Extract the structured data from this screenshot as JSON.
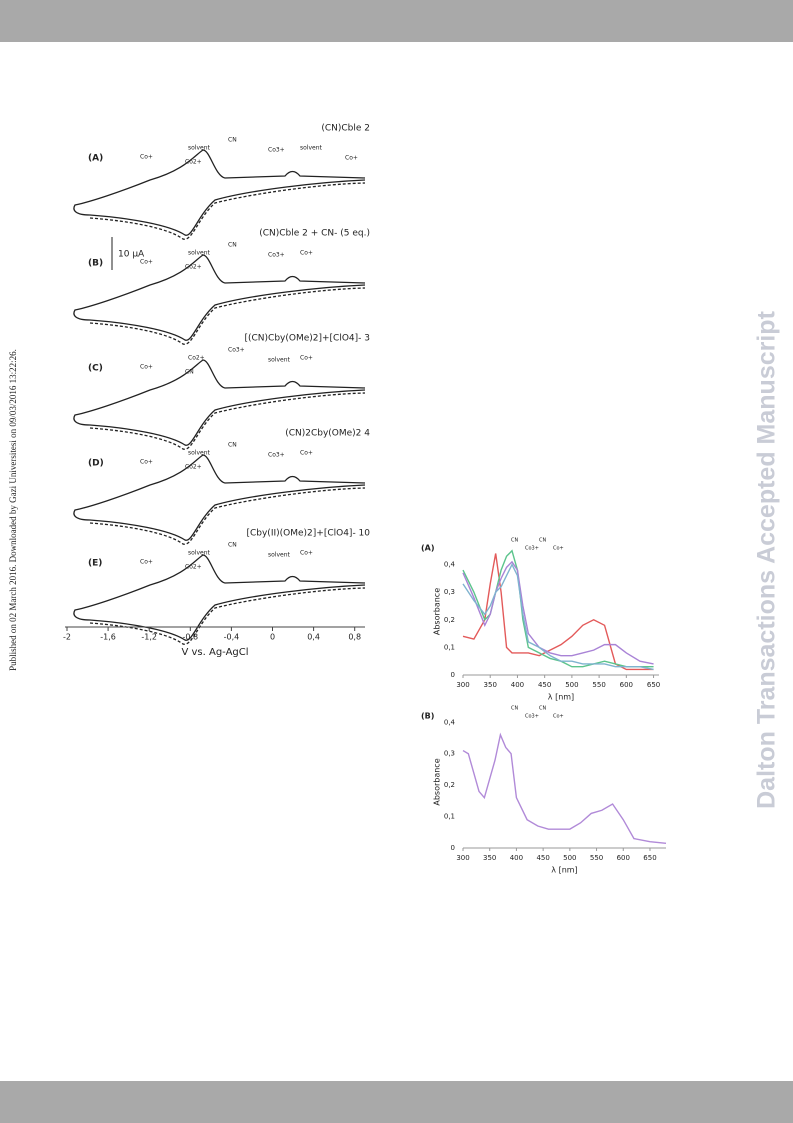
{
  "side_watermark": "Dalton Transactions Accepted Manuscript",
  "publication_note": "Published on 02 March 2016. Downloaded by Gazi Universitesi on 09/03/2016 13:22:26.",
  "cv_figure": {
    "scale_bar": "10 µA",
    "axis_label": "V vs. Ag-AgCl",
    "xticks": [
      "-2",
      "-1,6",
      "-1,2",
      "-0,8",
      "-0,4",
      "0",
      "0,4",
      "0,8"
    ],
    "panels": [
      {
        "label": "(A)",
        "title": "(CN)Cble 2",
        "annotations": [
          "Co+",
          "solvent",
          "Co2+",
          "CN",
          "Co3+",
          "solvent",
          "Co+"
        ]
      },
      {
        "label": "(B)",
        "title": "(CN)Cble 2 + CN- (5 eq.)",
        "annotations": [
          "Co+",
          "solvent",
          "Co2+",
          "CN",
          "Co3+",
          "Co+"
        ]
      },
      {
        "label": "(C)",
        "title": "[(CN)Cby(OMe)2]+[ClO4]- 3",
        "annotations": [
          "Co+",
          "Co2+",
          "CN",
          "Co3+",
          "solvent",
          "Co+"
        ]
      },
      {
        "label": "(D)",
        "title": "(CN)2Cby(OMe)2 4",
        "annotations": [
          "Co+",
          "solvent",
          "Co2+",
          "CN",
          "Co3+",
          "Co+"
        ]
      },
      {
        "label": "(E)",
        "title": "[Cby(II)(OMe)2]+[ClO4]- 10",
        "annotations": [
          "Co+",
          "solvent",
          "Co2+",
          "CN",
          "solvent",
          "Co+"
        ]
      }
    ]
  },
  "chart_data": [
    {
      "type": "line",
      "label": "(A)",
      "y_label": "Absorbance",
      "x_label": "λ [nm]",
      "x": [
        300,
        320,
        340,
        350,
        360,
        370,
        380,
        390,
        400,
        410,
        420,
        440,
        460,
        480,
        500,
        520,
        540,
        560,
        580,
        600,
        625,
        650
      ],
      "xlim": [
        300,
        660
      ],
      "xticks": [
        300,
        350,
        400,
        450,
        500,
        550,
        600,
        650
      ],
      "ylim": [
        0,
        0.46
      ],
      "yticks": [
        0,
        {
          "value": 0.1,
          "label": "0,1"
        },
        {
          "value": 0.2,
          "label": "0,2"
        },
        {
          "value": 0.3,
          "label": "0,3"
        },
        {
          "value": 0.4,
          "label": "0,4"
        }
      ],
      "annotations": [
        "CN",
        "Co3+",
        "CN",
        "Co+"
      ],
      "series": [
        {
          "color": "#e35a5a",
          "values": [
            0.14,
            0.13,
            0.2,
            0.33,
            0.44,
            0.3,
            0.1,
            0.08,
            0.08,
            0.08,
            0.08,
            0.07,
            0.09,
            0.11,
            0.14,
            0.18,
            0.2,
            0.18,
            0.04,
            0.02,
            0.02,
            0.02
          ]
        },
        {
          "color": "#5cc48c",
          "values": [
            0.38,
            0.3,
            0.2,
            0.22,
            0.3,
            0.38,
            0.43,
            0.45,
            0.38,
            0.2,
            0.1,
            0.08,
            0.06,
            0.05,
            0.03,
            0.03,
            0.04,
            0.05,
            0.04,
            0.03,
            0.03,
            0.03
          ]
        },
        {
          "color": "#a983d6",
          "values": [
            0.37,
            0.28,
            0.18,
            0.22,
            0.3,
            0.35,
            0.39,
            0.41,
            0.38,
            0.25,
            0.15,
            0.1,
            0.08,
            0.07,
            0.07,
            0.08,
            0.09,
            0.11,
            0.11,
            0.08,
            0.05,
            0.04
          ]
        },
        {
          "color": "#7fb3cf",
          "values": [
            0.33,
            0.27,
            0.22,
            0.25,
            0.3,
            0.32,
            0.36,
            0.4,
            0.36,
            0.22,
            0.12,
            0.1,
            0.07,
            0.05,
            0.05,
            0.04,
            0.04,
            0.04,
            0.03,
            0.03,
            0.03,
            0.02
          ]
        }
      ]
    },
    {
      "type": "line",
      "label": "(B)",
      "y_label": "Absorbance",
      "x_label": "λ [nm]",
      "x": [
        300,
        310,
        320,
        330,
        340,
        350,
        360,
        370,
        380,
        390,
        400,
        420,
        440,
        460,
        480,
        500,
        520,
        540,
        560,
        580,
        600,
        620,
        650,
        680
      ],
      "xlim": [
        300,
        680
      ],
      "xticks": [
        300,
        350,
        400,
        450,
        500,
        550,
        600,
        650
      ],
      "ylim": [
        0,
        0.42
      ],
      "yticks": [
        0,
        {
          "value": 0.1,
          "label": "0,1"
        },
        {
          "value": 0.2,
          "label": "0,2"
        },
        {
          "value": 0.3,
          "label": "0,3"
        },
        {
          "value": 0.4,
          "label": "0,4"
        }
      ],
      "annotations": [
        "CN",
        "Co3+",
        "CN",
        "Co+"
      ],
      "series": [
        {
          "color": "#b18ad8",
          "values": [
            0.31,
            0.3,
            0.24,
            0.18,
            0.16,
            0.22,
            0.28,
            0.36,
            0.32,
            0.3,
            0.16,
            0.09,
            0.07,
            0.06,
            0.06,
            0.06,
            0.08,
            0.11,
            0.12,
            0.14,
            0.09,
            0.03,
            0.02,
            0.015
          ]
        }
      ]
    }
  ]
}
